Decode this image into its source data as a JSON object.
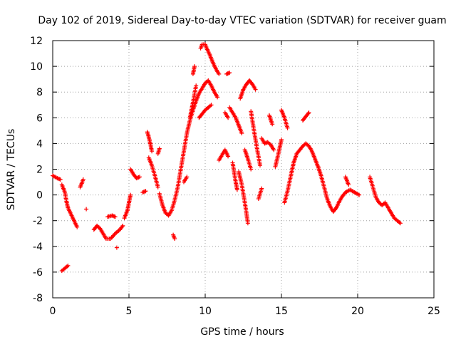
{
  "chart_data": {
    "type": "scatter",
    "title": "Day 102 of 2019, Sidereal Day-to-day VTEC variation (SDTVAR) for receiver guam",
    "xlabel": "GPS time / hours",
    "ylabel": "SDTVAR / TECUs",
    "xlim": [
      0,
      25
    ],
    "ylim": [
      -8,
      12
    ],
    "x_ticks": [
      0,
      5,
      10,
      15,
      20,
      25
    ],
    "y_ticks": [
      -8,
      -6,
      -4,
      -2,
      0,
      2,
      4,
      6,
      8,
      10,
      12
    ],
    "grid": true,
    "marker": "+",
    "series_color": "#ff0000",
    "series": [
      {
        "name": "SDTVAR",
        "segments": [
          [
            [
              0.0,
              1.5
            ],
            [
              0.3,
              1.3
            ],
            [
              0.5,
              1.2
            ]
          ],
          [
            [
              0.6,
              0.8
            ],
            [
              0.8,
              0.2
            ],
            [
              0.9,
              -0.5
            ],
            [
              1.0,
              -1.0
            ],
            [
              1.2,
              -1.5
            ],
            [
              1.4,
              -2.0
            ],
            [
              1.6,
              -2.5
            ]
          ],
          [
            [
              0.6,
              -5.9
            ],
            [
              0.8,
              -5.7
            ],
            [
              1.0,
              -5.5
            ]
          ],
          [
            [
              1.8,
              0.6
            ],
            [
              2.0,
              1.2
            ]
          ],
          [
            [
              2.2,
              -1.1
            ]
          ],
          [
            [
              2.7,
              -2.7
            ],
            [
              2.9,
              -2.4
            ],
            [
              3.1,
              -2.6
            ],
            [
              3.3,
              -3.0
            ],
            [
              3.5,
              -3.4
            ],
            [
              3.8,
              -3.4
            ],
            [
              4.1,
              -3.0
            ],
            [
              4.4,
              -2.7
            ],
            [
              4.6,
              -2.4
            ]
          ],
          [
            [
              3.6,
              -1.7
            ],
            [
              3.9,
              -1.6
            ],
            [
              4.1,
              -1.7
            ]
          ],
          [
            [
              4.2,
              -4.1
            ]
          ],
          [
            [
              4.7,
              -1.8
            ],
            [
              4.9,
              -1.2
            ],
            [
              5.0,
              -0.6
            ],
            [
              5.1,
              0.0
            ]
          ],
          [
            [
              5.1,
              2.0
            ],
            [
              5.3,
              1.6
            ],
            [
              5.5,
              1.3
            ],
            [
              5.7,
              1.4
            ]
          ],
          [
            [
              5.9,
              0.2
            ],
            [
              6.1,
              0.3
            ]
          ],
          [
            [
              6.2,
              4.9
            ],
            [
              6.3,
              4.5
            ],
            [
              6.4,
              4.0
            ],
            [
              6.5,
              3.4
            ]
          ],
          [
            [
              6.3,
              2.9
            ],
            [
              6.5,
              2.3
            ],
            [
              6.7,
              1.5
            ],
            [
              6.9,
              0.6
            ]
          ],
          [
            [
              6.9,
              3.2
            ],
            [
              7.0,
              3.6
            ]
          ],
          [
            [
              7.0,
              0.1
            ],
            [
              7.2,
              -0.8
            ],
            [
              7.4,
              -1.4
            ],
            [
              7.6,
              -1.6
            ],
            [
              7.8,
              -1.2
            ],
            [
              8.0,
              -0.4
            ],
            [
              8.2,
              0.6
            ],
            [
              8.4,
              2.0
            ],
            [
              8.6,
              3.4
            ],
            [
              8.8,
              4.8
            ],
            [
              9.0,
              5.8
            ],
            [
              9.2,
              6.6
            ],
            [
              9.4,
              7.3
            ],
            [
              9.6,
              7.9
            ],
            [
              9.8,
              8.3
            ],
            [
              10.0,
              8.7
            ],
            [
              10.2,
              8.9
            ],
            [
              10.4,
              8.5
            ],
            [
              10.6,
              8.0
            ],
            [
              10.8,
              7.6
            ]
          ],
          [
            [
              7.9,
              -3.1
            ],
            [
              8.0,
              -3.4
            ]
          ],
          [
            [
              8.6,
              1.0
            ],
            [
              8.8,
              1.4
            ]
          ],
          [
            [
              9.2,
              9.4
            ],
            [
              9.3,
              10.0
            ]
          ],
          [
            [
              9.0,
              6.0
            ],
            [
              9.2,
              7.2
            ],
            [
              9.4,
              8.5
            ]
          ],
          [
            [
              9.6,
              6.0
            ],
            [
              9.8,
              6.3
            ],
            [
              10.0,
              6.6
            ],
            [
              10.2,
              6.8
            ],
            [
              10.4,
              7.0
            ]
          ],
          [
            [
              9.7,
              11.4
            ],
            [
              9.8,
              11.7
            ],
            [
              10.0,
              11.7
            ],
            [
              10.1,
              11.4
            ],
            [
              10.3,
              10.9
            ],
            [
              10.5,
              10.3
            ],
            [
              10.7,
              9.8
            ],
            [
              10.9,
              9.4
            ]
          ],
          [
            [
              10.9,
              2.7
            ],
            [
              11.1,
              3.1
            ],
            [
              11.3,
              3.5
            ],
            [
              11.5,
              3.0
            ]
          ],
          [
            [
              11.4,
              9.4
            ],
            [
              11.6,
              9.5
            ]
          ],
          [
            [
              11.3,
              6.4
            ],
            [
              11.5,
              6.0
            ]
          ],
          [
            [
              11.6,
              6.8
            ],
            [
              11.8,
              6.4
            ],
            [
              12.0,
              6.0
            ],
            [
              12.2,
              5.4
            ],
            [
              12.4,
              4.8
            ]
          ],
          [
            [
              11.8,
              2.5
            ],
            [
              12.0,
              1.0
            ],
            [
              12.1,
              0.4
            ]
          ],
          [
            [
              12.2,
              1.8
            ],
            [
              12.4,
              0.8
            ],
            [
              12.6,
              -0.6
            ],
            [
              12.7,
              -1.4
            ],
            [
              12.8,
              -2.2
            ]
          ],
          [
            [
              12.3,
              7.5
            ],
            [
              12.5,
              8.2
            ],
            [
              12.7,
              8.6
            ],
            [
              12.9,
              8.9
            ],
            [
              13.1,
              8.6
            ],
            [
              13.3,
              8.2
            ]
          ],
          [
            [
              12.6,
              3.5
            ],
            [
              12.8,
              2.8
            ],
            [
              13.0,
              2.0
            ]
          ],
          [
            [
              13.0,
              6.5
            ],
            [
              13.2,
              5.0
            ],
            [
              13.4,
              3.6
            ],
            [
              13.6,
              2.3
            ]
          ],
          [
            [
              13.5,
              -0.3
            ],
            [
              13.7,
              0.5
            ]
          ],
          [
            [
              13.7,
              4.4
            ],
            [
              13.9,
              4.0
            ],
            [
              14.1,
              4.1
            ],
            [
              14.3,
              3.9
            ],
            [
              14.5,
              3.5
            ]
          ],
          [
            [
              14.2,
              6.2
            ],
            [
              14.4,
              5.5
            ]
          ],
          [
            [
              14.6,
              2.2
            ],
            [
              14.8,
              3.2
            ],
            [
              15.0,
              4.3
            ]
          ],
          [
            [
              15.0,
              6.6
            ],
            [
              15.2,
              6.0
            ],
            [
              15.4,
              5.2
            ]
          ],
          [
            [
              15.2,
              -0.6
            ],
            [
              15.4,
              0.3
            ],
            [
              15.6,
              1.4
            ],
            [
              15.8,
              2.5
            ],
            [
              16.0,
              3.2
            ],
            [
              16.2,
              3.5
            ],
            [
              16.4,
              3.8
            ],
            [
              16.6,
              4.0
            ],
            [
              16.8,
              3.8
            ],
            [
              17.0,
              3.4
            ],
            [
              17.2,
              2.8
            ],
            [
              17.4,
              2.2
            ],
            [
              17.6,
              1.5
            ],
            [
              17.8,
              0.6
            ],
            [
              18.0,
              -0.3
            ],
            [
              18.2,
              -0.9
            ],
            [
              18.4,
              -1.3
            ],
            [
              18.6,
              -1.0
            ],
            [
              18.8,
              -0.5
            ],
            [
              19.0,
              -0.1
            ],
            [
              19.2,
              0.2
            ],
            [
              19.5,
              0.4
            ],
            [
              19.8,
              0.2
            ],
            [
              20.1,
              0.0
            ]
          ],
          [
            [
              16.4,
              5.8
            ],
            [
              16.6,
              6.1
            ],
            [
              16.8,
              6.4
            ]
          ],
          [
            [
              19.2,
              1.4
            ],
            [
              19.4,
              0.8
            ]
          ],
          [
            [
              20.8,
              1.4
            ],
            [
              21.0,
              0.6
            ],
            [
              21.2,
              -0.2
            ],
            [
              21.4,
              -0.6
            ],
            [
              21.6,
              -0.8
            ],
            [
              21.8,
              -0.6
            ],
            [
              22.0,
              -1.0
            ],
            [
              22.2,
              -1.4
            ],
            [
              22.4,
              -1.8
            ],
            [
              22.6,
              -2.0
            ],
            [
              22.8,
              -2.2
            ]
          ]
        ]
      }
    ]
  }
}
